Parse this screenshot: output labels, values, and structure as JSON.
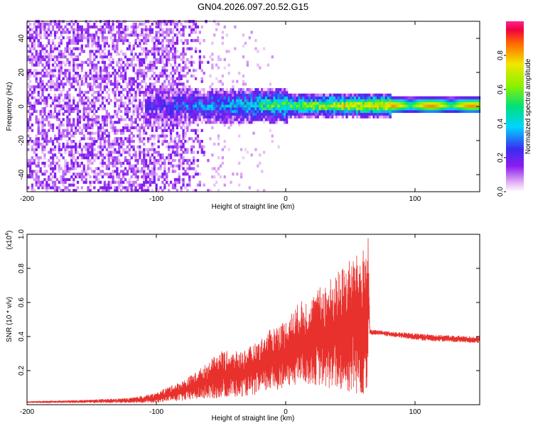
{
  "title": "GN04.2026.097.20.52.G15",
  "chart_data": [
    {
      "type": "heatmap",
      "title": "GN04.2026.097.20.52.G15",
      "xlabel": "Height of straight line (km)",
      "ylabel": "Frequency (Hz)",
      "xlim": [
        -200,
        150
      ],
      "ylim": [
        -50,
        50
      ],
      "xticks": [
        -200,
        -100,
        0,
        100
      ],
      "yticks": [
        40,
        20,
        0,
        -20,
        -40
      ],
      "colorbar": {
        "label": "Normalized spectral amplitude",
        "range": [
          0,
          1
        ],
        "ticks": [
          0.0,
          0.2,
          0.4,
          0.6,
          0.8
        ]
      },
      "features": [
        {
          "name": "broadband noise",
          "x_range": [
            -200,
            -60
          ],
          "freq_range": [
            -50,
            50
          ],
          "amplitude": 0.15
        },
        {
          "name": "scattered noise",
          "x_range": [
            -60,
            0
          ],
          "freq_range": [
            -50,
            50
          ],
          "amplitude": 0.05
        },
        {
          "name": "signal band",
          "x_range": [
            -110,
            80
          ],
          "freq_center": 0,
          "freq_halfwidth": 10,
          "amplitude_range": [
            0.2,
            0.8
          ]
        },
        {
          "name": "clean tone",
          "x_range": [
            80,
            150
          ],
          "freq_center": 0,
          "freq_halfwidth": 3,
          "amplitude": 0.85
        }
      ]
    },
    {
      "type": "line",
      "xlabel": "Height of straight line (km)",
      "ylabel": "SNR (10 * v/v)",
      "y_multiplier": "(x10",
      "y_multiplier_exp": "4",
      "xlim": [
        -200,
        150
      ],
      "ylim": [
        0,
        1.0
      ],
      "xticks": [
        -200,
        -100,
        0,
        100
      ],
      "yticks": [
        0.2,
        0.4,
        0.6,
        0.8,
        1.0
      ],
      "color": "#e8302c",
      "series": [
        {
          "name": "SNR envelope",
          "x": [
            -200,
            -150,
            -120,
            -100,
            -90,
            -80,
            -70,
            -60,
            -50,
            -40,
            -30,
            -20,
            -10,
            0,
            10,
            20,
            30,
            40,
            50,
            55,
            60,
            63,
            64,
            65,
            70,
            80,
            100,
            120,
            150
          ],
          "low": [
            0.01,
            0.01,
            0.01,
            0.01,
            0.02,
            0.02,
            0.03,
            0.03,
            0.04,
            0.04,
            0.05,
            0.06,
            0.08,
            0.1,
            0.12,
            0.12,
            0.1,
            0.08,
            0.06,
            0.06,
            0.05,
            0.05,
            0.4,
            0.41,
            0.41,
            0.4,
            0.38,
            0.37,
            0.36
          ],
          "high": [
            0.02,
            0.03,
            0.04,
            0.07,
            0.11,
            0.14,
            0.19,
            0.25,
            0.32,
            0.31,
            0.33,
            0.38,
            0.46,
            0.5,
            0.6,
            0.64,
            0.72,
            0.78,
            0.86,
            0.88,
            0.92,
            0.98,
            1.0,
            0.44,
            0.44,
            0.43,
            0.42,
            0.41,
            0.4
          ]
        }
      ]
    }
  ]
}
